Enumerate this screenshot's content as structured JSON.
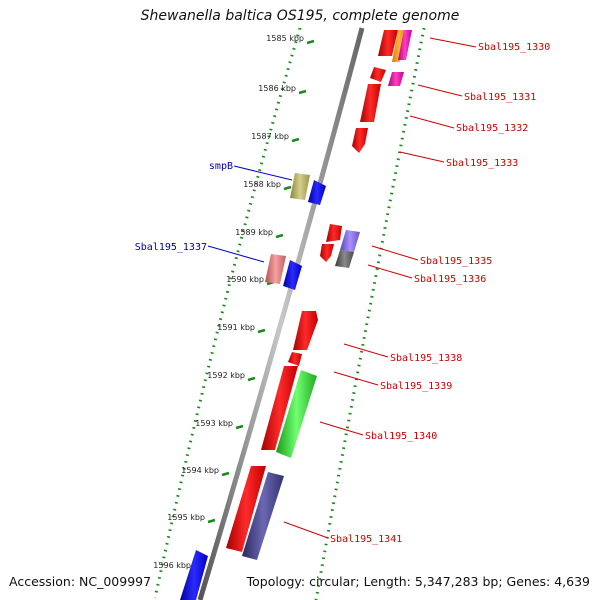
{
  "header": {
    "title": "Shewanella baltica OS195, complete genome"
  },
  "footer": {
    "accession": "Accession: NC_009997",
    "topology": "Topology: circular; Length: 5,347,283 bp; Genes: 4,639"
  },
  "ruler": [
    "1585 kbp",
    "1586 kbp",
    "1587 kbp",
    "1588 kbp",
    "1589 kbp",
    "1590 kbp",
    "1591 kbp",
    "1592 kbp",
    "1593 kbp",
    "1594 kbp",
    "1595 kbp",
    "1596 kbp"
  ],
  "colors": {
    "forward": "#ee0000",
    "reverse": "#0000ee",
    "label_right": "#cc0000",
    "label_left": "#000099",
    "tick_dots": "#1a8a1a"
  },
  "gene_labels_right": [
    "Sbal195_1330",
    "Sbal195_1331",
    "Sbal195_1332",
    "Sbal195_1333",
    "Sbal195_1335",
    "Sbal195_1336",
    "Sbal195_1338",
    "Sbal195_1339",
    "Sbal195_1340",
    "Sbal195_1341"
  ],
  "gene_labels_left": [
    "smpB",
    "Sbal195_1337"
  ]
}
